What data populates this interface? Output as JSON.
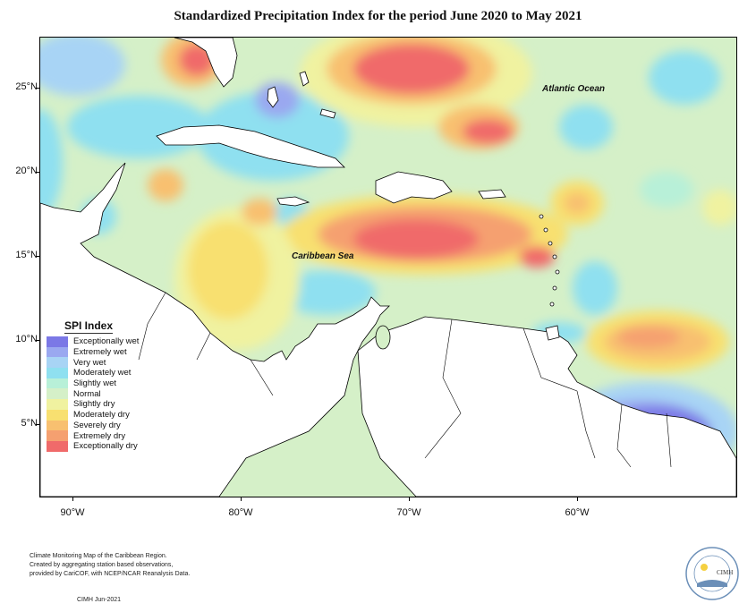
{
  "title": "Standardized Precipitation Index for the period June 2020 to May 2021",
  "axes": {
    "lat_labels": [
      "25°N",
      "20°N",
      "15°N",
      "10°N",
      "5°N"
    ],
    "lon_labels": [
      "90°W",
      "80°W",
      "70°W",
      "60°W"
    ]
  },
  "places": {
    "atlantic": "Atlantic Ocean",
    "caribbean": "Caribbean Sea"
  },
  "legend": {
    "title": "SPI Index",
    "items": [
      {
        "label": "Exceptionally wet",
        "color": "#7b78e6"
      },
      {
        "label": "Extremely wet",
        "color": "#9aa8f0"
      },
      {
        "label": "Very wet",
        "color": "#a8d4f5"
      },
      {
        "label": "Moderately wet",
        "color": "#8fe0f0"
      },
      {
        "label": "Slightly wet",
        "color": "#b8f0d8"
      },
      {
        "label": "Normal",
        "color": "#d5f0c8"
      },
      {
        "label": "Slightly dry",
        "color": "#f0f2a0"
      },
      {
        "label": "Moderately dry",
        "color": "#f8e070"
      },
      {
        "label": "Severely dry",
        "color": "#f8c070"
      },
      {
        "label": "Extremely dry",
        "color": "#f5a070"
      },
      {
        "label": "Exceptionally dry",
        "color": "#f06a6a"
      }
    ]
  },
  "footer": {
    "line1": "Climate Monitoring Map of the Caribbean Region.",
    "line2": "Created by aggregating station based observations,",
    "line3": "provided by CariCOF, with NCEP/NCAR Reanalysis Data.",
    "credit": "CIMH Jun-2021"
  },
  "logo": {
    "text": "CIMH"
  }
}
